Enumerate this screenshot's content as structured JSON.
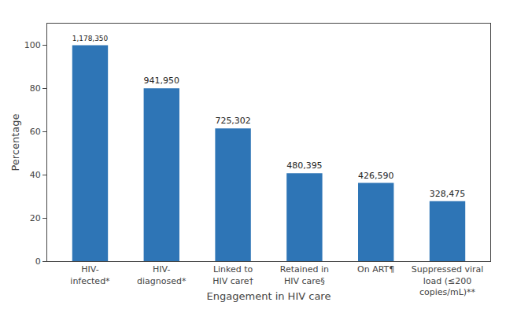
{
  "chart_data": {
    "type": "bar",
    "xlabel": "Engagement in HIV care",
    "ylabel": "Percentage",
    "categories": [
      "HIV-\ninfected*",
      "HIV-\ndiagnosed*",
      "Linked to\nHIV care†",
      "Retained in\nHIV care§",
      "On ART¶",
      "Suppressed viral\nload (≤200\ncopies/mL)**"
    ],
    "values": [
      100,
      80.0,
      61.5,
      40.7,
      36.2,
      27.8
    ],
    "annotations": [
      "1,178,350",
      "941,950",
      "725,302",
      "480,395",
      "426,590",
      "328,475"
    ],
    "color": "#2E75B6",
    "ylim": [
      0,
      110
    ],
    "yticks": [
      0,
      20,
      40,
      60,
      80,
      100
    ],
    "grid": false
  }
}
